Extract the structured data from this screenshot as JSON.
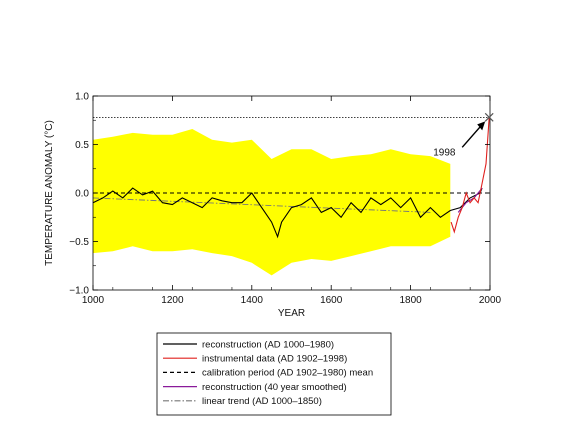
{
  "chart_data": {
    "type": "line",
    "xlabel": "YEAR",
    "ylabel": "TEMPERATURE ANOMALY (°C)",
    "xlim": [
      1000,
      2000
    ],
    "ylim": [
      -1.0,
      1.0
    ],
    "x_ticks": [
      1000,
      1200,
      1400,
      1600,
      1800,
      2000
    ],
    "y_ticks": [
      -1.0,
      -0.5,
      0.0,
      0.5,
      1.0
    ],
    "x_tick_labels": [
      "1000",
      "1200",
      "1400",
      "1600",
      "1800",
      "2000"
    ],
    "y_tick_labels": [
      "−1.0",
      "−0.5",
      "0.0",
      "0.5",
      "1.0"
    ],
    "grid": false,
    "legend_position": "bottom",
    "reference_level": 0.78,
    "annotation": {
      "text": "1998",
      "x": 1998,
      "y": 0.78
    },
    "uncertainty_band": {
      "color": "#ffff00",
      "x": [
        1000,
        1050,
        1100,
        1150,
        1200,
        1250,
        1300,
        1350,
        1400,
        1450,
        1500,
        1550,
        1600,
        1650,
        1700,
        1750,
        1800,
        1850,
        1900
      ],
      "upper": [
        0.55,
        0.58,
        0.62,
        0.6,
        0.6,
        0.66,
        0.55,
        0.52,
        0.55,
        0.35,
        0.45,
        0.45,
        0.35,
        0.38,
        0.4,
        0.45,
        0.4,
        0.38,
        0.3
      ],
      "lower": [
        -0.62,
        -0.6,
        -0.55,
        -0.6,
        -0.6,
        -0.58,
        -0.62,
        -0.65,
        -0.72,
        -0.85,
        -0.72,
        -0.68,
        -0.7,
        -0.65,
        -0.6,
        -0.55,
        -0.55,
        -0.55,
        -0.45
      ]
    },
    "series": [
      {
        "name": "reconstruction (AD 1000–1980)",
        "color": "#000000",
        "style": "solid",
        "x": [
          1000,
          1025,
          1050,
          1075,
          1100,
          1125,
          1150,
          1175,
          1200,
          1225,
          1250,
          1275,
          1300,
          1325,
          1350,
          1375,
          1400,
          1425,
          1450,
          1465,
          1475,
          1500,
          1525,
          1550,
          1575,
          1600,
          1625,
          1650,
          1675,
          1700,
          1725,
          1750,
          1775,
          1800,
          1825,
          1850,
          1875,
          1900,
          1925,
          1950,
          1975,
          1980
        ],
        "y": [
          -0.1,
          -0.05,
          0.02,
          -0.05,
          0.05,
          -0.02,
          0.02,
          -0.1,
          -0.12,
          -0.05,
          -0.1,
          -0.15,
          -0.05,
          -0.08,
          -0.1,
          -0.1,
          0.0,
          -0.15,
          -0.3,
          -0.45,
          -0.3,
          -0.15,
          -0.12,
          -0.05,
          -0.2,
          -0.15,
          -0.25,
          -0.1,
          -0.2,
          -0.05,
          -0.12,
          -0.05,
          -0.15,
          -0.05,
          -0.25,
          -0.15,
          -0.25,
          -0.18,
          -0.15,
          -0.05,
          0.0,
          0.05
        ]
      },
      {
        "name": "instrumental data (AD 1902–1998)",
        "color": "#e0201e",
        "style": "solid",
        "x": [
          1902,
          1910,
          1920,
          1930,
          1940,
          1950,
          1960,
          1970,
          1980,
          1990,
          1998
        ],
        "y": [
          -0.3,
          -0.4,
          -0.25,
          -0.15,
          0.0,
          -0.1,
          -0.05,
          -0.1,
          0.1,
          0.3,
          0.78
        ]
      },
      {
        "name": "calibration period (AD 1902–1980) mean",
        "color": "#000000",
        "style": "dashed",
        "x": [
          1000,
          2000
        ],
        "y": [
          0.0,
          0.0
        ]
      },
      {
        "name": "reconstruction (40 year smoothed)",
        "color": "#8a1a9a",
        "style": "solid",
        "x": [
          1920,
          1940,
          1960,
          1980
        ],
        "y": [
          -0.2,
          -0.1,
          -0.05,
          0.05
        ]
      },
      {
        "name": "linear trend (AD 1000–1850)",
        "color": "#777777",
        "style": "dashdot",
        "x": [
          1000,
          1850
        ],
        "y": [
          -0.05,
          -0.2
        ]
      }
    ]
  }
}
